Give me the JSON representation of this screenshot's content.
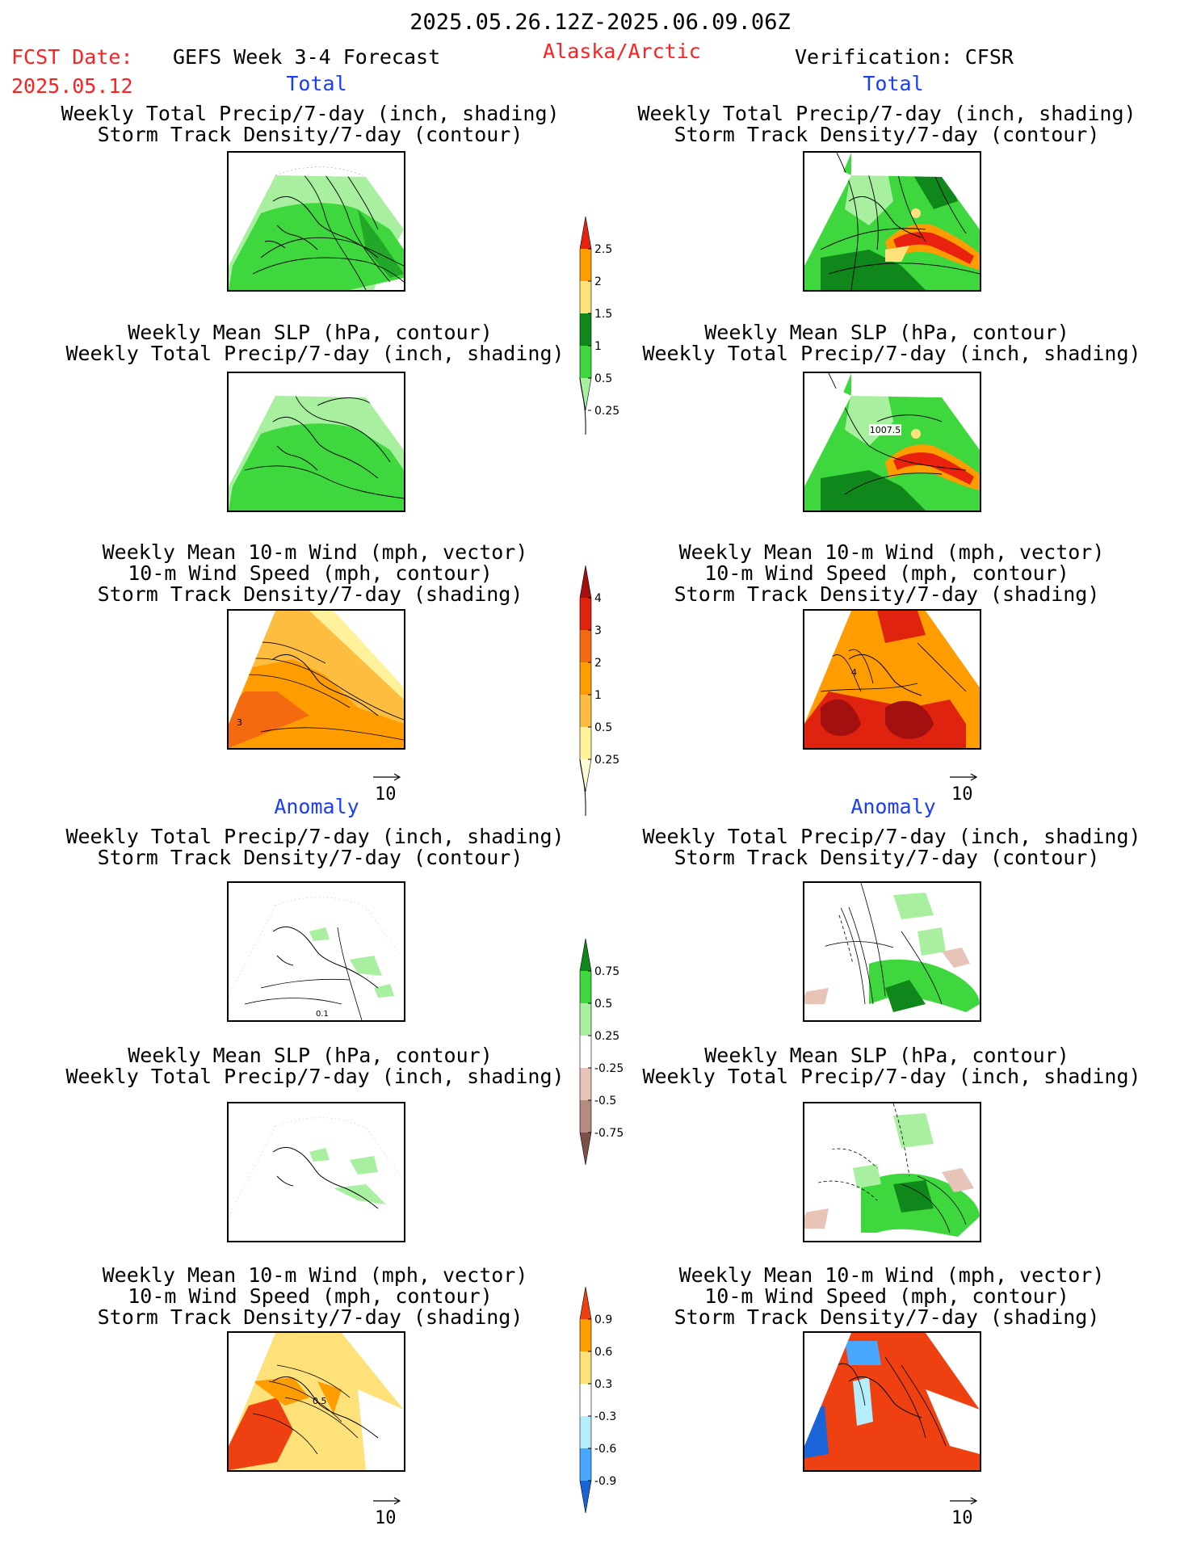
{
  "header": {
    "date_range": "2025.05.26.12Z-2025.06.09.06Z",
    "fcst_date_label": "FCST Date:",
    "fcst_date_value": "2025.05.12",
    "product": "GEFS Week 3-4 Forecast",
    "region": "Alaska/Arctic",
    "verification": "Verification: CFSR"
  },
  "sections": {
    "total": "Total",
    "anomaly": "Anomaly"
  },
  "titles": {
    "precip_storm": [
      "Weekly Total Precip/7-day (inch, shading)",
      "Storm Track Density/7-day (contour)"
    ],
    "slp_precip": [
      "Weekly Mean SLP (hPa, contour)",
      "Weekly Total Precip/7-day (inch, shading)"
    ],
    "wind_storm": [
      "Weekly Mean 10-m Wind (mph, vector)",
      "10-m Wind Speed (mph, contour)",
      "Storm Track Density/7-day (shading)"
    ]
  },
  "map_annotations": {
    "right_slp_total": "1007.5",
    "wind_total_left": "3",
    "wind_total_right": "4",
    "precip_anom_left": "0.1",
    "wind_anom_left": "0.5"
  },
  "vector_scale": "10",
  "colorbars": {
    "precip_total": {
      "labels": [
        "2.5",
        "2",
        "1.5",
        "1",
        "0.5",
        "0.25"
      ],
      "colors": [
        "#e8220e",
        "#ff9c00",
        "#ffe17a",
        "#10871a",
        "#3ed83e",
        "#a8f0a0"
      ]
    },
    "storm_total": {
      "labels": [
        "4",
        "3",
        "2",
        "1",
        "0.5",
        "0.25"
      ],
      "colors": [
        "#a40f0f",
        "#e0230f",
        "#f46a10",
        "#ff9c00",
        "#fcbd40",
        "#fff29a",
        "#fffbd2"
      ]
    },
    "precip_anom": {
      "labels": [
        "0.75",
        "0.5",
        "0.25",
        "-0.25",
        "-0.5",
        "-0.75"
      ],
      "colors": [
        "#10871a",
        "#3ed83e",
        "#a8f0a0",
        "#ffffff",
        "#e7c3b8",
        "#b58c7f",
        "#7d5147"
      ]
    },
    "storm_anom": {
      "labels": [
        "0.9",
        "0.6",
        "0.3",
        "-0.3",
        "-0.6",
        "-0.9"
      ],
      "colors": [
        "#ee4010",
        "#ff9c00",
        "#ffe17a",
        "#ffffff",
        "#b4eefa",
        "#4aa7ff",
        "#1a63d8"
      ]
    }
  }
}
